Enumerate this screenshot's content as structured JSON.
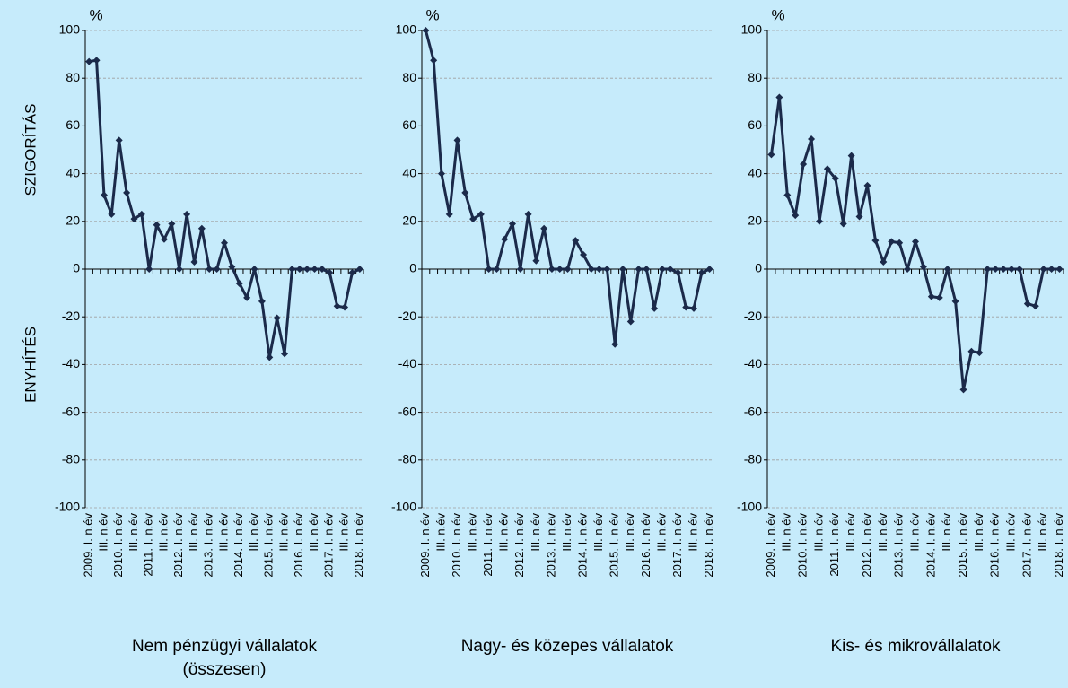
{
  "chart_data": [
    {
      "type": "line",
      "title": "Nem pénzügyi vállalatok\n(összesen)",
      "unit": "%",
      "y_label_top": "SZIGORÍTÁS",
      "y_label_bottom": "ENYHÍTÉS",
      "categories": [
        "2009. I. n.év",
        null,
        "III. n.év",
        null,
        "2010. I. n.év",
        null,
        "III. n.év",
        null,
        "2011. I. n.év",
        null,
        "III. n.év",
        null,
        "2012. I. n.év",
        null,
        "III. n.év",
        null,
        "2013. I. n.év",
        null,
        "III. n.év",
        null,
        "2014. I. n.év",
        null,
        "III. n.év",
        null,
        "2015. I. n.év",
        null,
        "III. n.év",
        null,
        "2016. I. n.év",
        null,
        "III. n.év",
        null,
        "2017. I. n.év",
        null,
        "III. n.év",
        null,
        "2018. I. n.év"
      ],
      "values": [
        87,
        87.5,
        31,
        23,
        54,
        32,
        21,
        23,
        0,
        18.5,
        12.5,
        19,
        0,
        23,
        3,
        17,
        0,
        0,
        11,
        1,
        -6,
        -12,
        0,
        -13.5,
        -37,
        -20.5,
        -35.5,
        0,
        0,
        0,
        0,
        0,
        -1.5,
        -15.5,
        -16,
        -1.5,
        0
      ],
      "color": "#1b2a4a",
      "ylim": [
        -100,
        100
      ],
      "yticks": [
        -100,
        -80,
        -60,
        -40,
        -20,
        0,
        20,
        40,
        60,
        80,
        100
      ],
      "grid": true
    },
    {
      "type": "line",
      "title": "Nagy- és közepes vállalatok",
      "unit": "%",
      "categories": [
        "2009. I. n.év",
        null,
        "III. n.év",
        null,
        "2010. I. n.év",
        null,
        "III. n.év",
        null,
        "2011. I. n.év",
        null,
        "III. n.év",
        null,
        "2012. I. n.év",
        null,
        "III. n.év",
        null,
        "2013. I. n.év",
        null,
        "III. n.év",
        null,
        "2014. I. n.év",
        null,
        "III. n.év",
        null,
        "2015. I. n.év",
        null,
        "III. n.év",
        null,
        "2016. I. n.év",
        null,
        "III. n.év",
        null,
        "2017. I. n.év",
        null,
        "III. n.év",
        null,
        "2018. I. n.év"
      ],
      "values": [
        100,
        87.5,
        40,
        23,
        54,
        32,
        21,
        23,
        0,
        0,
        12.5,
        19,
        0,
        23,
        3.5,
        17,
        0,
        0,
        0,
        12,
        6,
        0,
        0,
        0,
        -31.5,
        0,
        -22,
        0,
        0,
        -16.5,
        0,
        0,
        -1.5,
        -16,
        -16.5,
        -1.5,
        0
      ],
      "color": "#1b2a4a",
      "ylim": [
        -100,
        100
      ],
      "yticks": [
        -100,
        -80,
        -60,
        -40,
        -20,
        0,
        20,
        40,
        60,
        80,
        100
      ],
      "grid": true
    },
    {
      "type": "line",
      "title": "Kis- és mikrovállalatok",
      "unit": "%",
      "categories": [
        "2009. I. n.év",
        null,
        "III. n.év",
        null,
        "2010. I. n.év",
        null,
        "III. n.év",
        null,
        "2011. I. n.év",
        null,
        "III. n.év",
        null,
        "2012. I. n.év",
        null,
        "III. n.év",
        null,
        "2013. I. n.év",
        null,
        "III. n.év",
        null,
        "2014. I. n.év",
        null,
        "III. n.év",
        null,
        "2015. I. n.év",
        null,
        "III. n.év",
        null,
        "2016. I. n.év",
        null,
        "III. n.év",
        null,
        "2017. I. n.év",
        null,
        "III. n.év",
        null,
        "2018. I. n.év"
      ],
      "values": [
        48,
        72,
        31,
        22.5,
        44,
        54.5,
        20,
        42,
        38,
        19,
        47.5,
        22,
        35,
        12,
        3,
        11.5,
        11,
        0,
        11.5,
        1,
        -11.5,
        -12,
        0,
        -13.5,
        -50.5,
        -34.5,
        -35,
        0,
        0,
        0,
        0,
        0,
        -14.5,
        -15.5,
        0,
        0,
        0
      ],
      "color": "#1b2a4a",
      "ylim": [
        -100,
        100
      ],
      "yticks": [
        -100,
        -80,
        -60,
        -40,
        -20,
        0,
        20,
        40,
        60,
        80,
        100
      ],
      "grid": true
    }
  ]
}
